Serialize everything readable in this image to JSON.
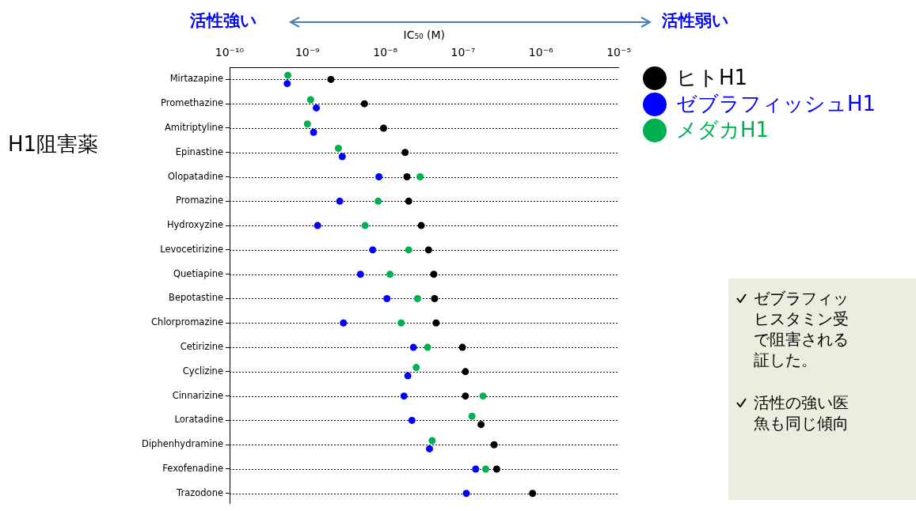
{
  "chart_data": {
    "type": "scatter",
    "orientation": "horizontal",
    "xlabel": "IC₅₀ (M)",
    "ylabel": "H1阻害薬",
    "annotations": [
      "活性強い",
      "活性弱い",
      "ゼブラフィッヒスタミン受で阻害される証した。",
      "活性の強い医魚も同じ傾向"
    ],
    "categories": [
      "Mirtazapine",
      "Promethazine",
      "Amitriptyline",
      "Epinastine",
      "Olopatadine",
      "Promazine",
      "Hydroxyzine",
      "Levocetirizine",
      "Quetiapine",
      "Bepotastine",
      "Chlorpromazine",
      "Cetirizine",
      "Cyclizine",
      "Cinnarizine",
      "Loratadine",
      "Diphenhydramine",
      "Fexofenadine",
      "Trazodone"
    ],
    "series": [
      {
        "name": "ヒトH1",
        "color": "#000000",
        "values": [
          2e-09,
          5.4e-09,
          9.5e-09,
          1.8e-08,
          1.9e-08,
          2e-08,
          2.9e-08,
          3.6e-08,
          4.2e-08,
          4.3e-08,
          4.5e-08,
          9.8e-08,
          1.07e-07,
          1.07e-07,
          1.7e-07,
          2.5e-07,
          2.7e-07,
          7.8e-07
        ]
      },
      {
        "name": "ゼブラフィッシュH1",
        "color": "#0000ff",
        "values": [
          5.5e-10,
          1.3e-09,
          1.2e-09,
          2.8e-09,
          8.3e-09,
          2.6e-09,
          1.35e-09,
          6.9e-09,
          4.8e-09,
          1.05e-08,
          2.9e-09,
          2.3e-08,
          1.95e-08,
          1.74e-08,
          2.2e-08,
          3.7e-08,
          1.45e-07,
          1.1e-07
        ]
      },
      {
        "name": "メダカH1",
        "color": "#00b050",
        "values": [
          5.6e-10,
          1.1e-09,
          1e-09,
          2.5e-09,
          2.8e-08,
          8.1e-09,
          5.5e-09,
          2e-08,
          1.15e-08,
          2.6e-08,
          1.6e-08,
          3.5e-08,
          2.5e-08,
          1.8e-07,
          1.3e-07,
          4e-08,
          1.95e-07,
          null
        ]
      }
    ],
    "log": "x",
    "xlim": [
      1e-10,
      1e-05
    ],
    "xticks": [
      {
        "value": 1e-10,
        "label": "10⁻¹⁰"
      },
      {
        "value": 1e-09,
        "label": "10⁻⁹"
      },
      {
        "value": 1e-08,
        "label": "10⁻⁸"
      },
      {
        "value": 1e-07,
        "label": "10⁻⁷"
      },
      {
        "value": 1e-06,
        "label": "10⁻⁶"
      },
      {
        "value": 1e-05,
        "label": "10⁻⁵"
      }
    ],
    "grid": "y",
    "legend": "top right",
    "marker": "circle"
  }
}
